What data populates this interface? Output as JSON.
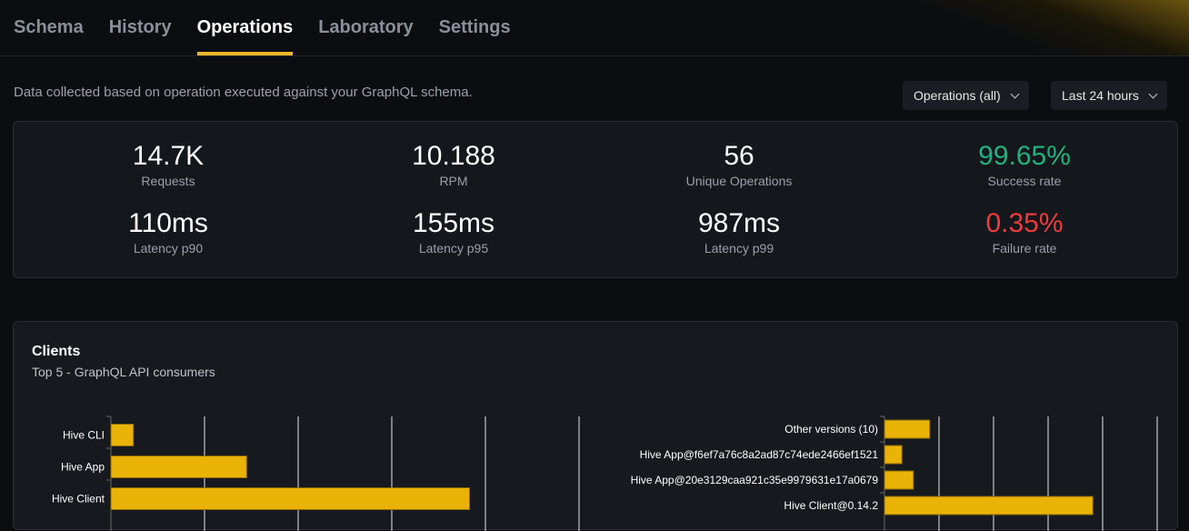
{
  "tabs": [
    "Schema",
    "History",
    "Operations",
    "Laboratory",
    "Settings"
  ],
  "active_tab": "Operations",
  "description": "Data collected based on operation executed against your GraphQL schema.",
  "filters": {
    "operations": "Operations (all)",
    "period": "Last 24 hours"
  },
  "stats": [
    {
      "value": "14.7K",
      "label": "Requests"
    },
    {
      "value": "10.188",
      "label": "RPM"
    },
    {
      "value": "56",
      "label": "Unique Operations"
    },
    {
      "value": "99.65%",
      "label": "Success rate",
      "color": "#1fb27e"
    },
    {
      "value": "110ms",
      "label": "Latency p90"
    },
    {
      "value": "155ms",
      "label": "Latency p95"
    },
    {
      "value": "987ms",
      "label": "Latency p99"
    },
    {
      "value": "0.35%",
      "label": "Failure rate",
      "color": "#ef3b3b"
    }
  ],
  "clients": {
    "title": "Clients",
    "subtitle": "Top 5 - GraphQL API consumers"
  },
  "chart_data": [
    {
      "type": "bar",
      "orientation": "horizontal",
      "categories": [
        "Hive CLI",
        "Hive App",
        "Hive Client"
      ],
      "values": [
        0.24,
        1.45,
        3.83
      ],
      "xlim": [
        0,
        5
      ],
      "grid": true,
      "color": "#eab308"
    },
    {
      "type": "bar",
      "orientation": "horizontal",
      "categories": [
        "Other versions (10)",
        "Hive App@f6ef7a76c8a2ad87c74ede2466ef1521",
        "Hive App@20e3129caa921c35e9979631e17a0679",
        "Hive Client@0.14.2"
      ],
      "values": [
        0.83,
        0.32,
        0.53,
        3.82
      ],
      "xlim": [
        0,
        5
      ],
      "grid": true,
      "color": "#eab308"
    }
  ]
}
